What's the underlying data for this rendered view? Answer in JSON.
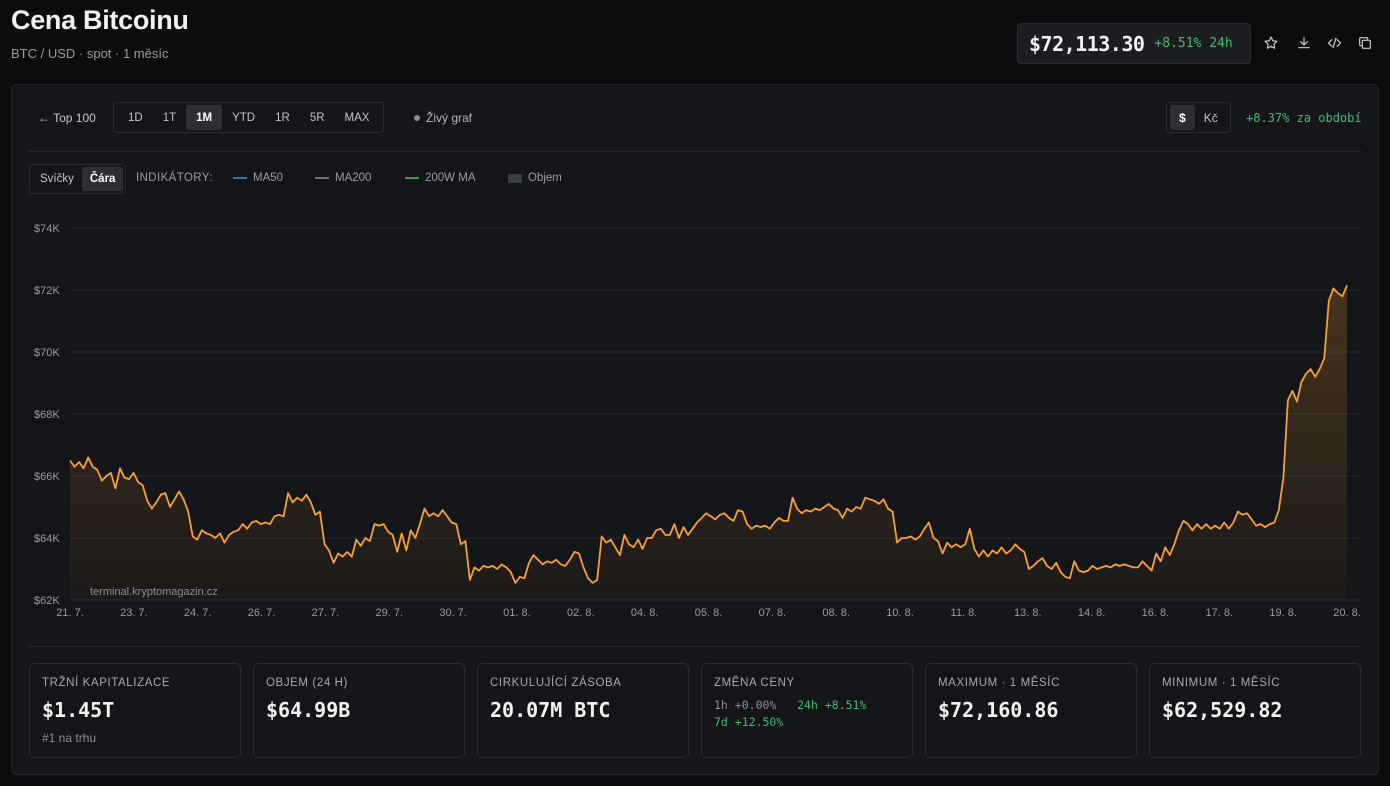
{
  "header": {
    "title": "Cena Bitcoinu",
    "subtitle": "BTC / USD · spot · 1 měsíc",
    "price": "$72,113.30",
    "change_24h": "+8.51% 24h"
  },
  "toolbar": {
    "back_label": "← Top 100",
    "ranges": [
      "1D",
      "1T",
      "1M",
      "YTD",
      "1R",
      "5R",
      "MAX"
    ],
    "active_range": "1M",
    "live_label": "Živý graf",
    "currency_usd": "$",
    "currency_czk": "Kč",
    "period_change": "+8.37% za období"
  },
  "chart_controls": {
    "type_candles": "Svíčky",
    "type_line": "Čára",
    "indicators_label": "INDIKÁTORY:",
    "indicators": [
      {
        "name": "MA50",
        "color": "#3e6fa8"
      },
      {
        "name": "MA200",
        "color": "#6f7276"
      },
      {
        "name": "200W MA",
        "color": "#3a9a5a"
      },
      {
        "name": "Objem",
        "color": "#3a3f3d"
      }
    ]
  },
  "watermark": "terminal.kryptomagazin.cz",
  "colors": {
    "line": "#f7a033",
    "positive": "#3fbf6f",
    "background": "#0b0c0e"
  },
  "chart_data": {
    "type": "line",
    "title": "",
    "xlabel": "",
    "ylabel": "",
    "ylim": [
      62000,
      74000
    ],
    "yticks": [
      62000,
      64000,
      66000,
      68000,
      70000,
      72000,
      74000
    ],
    "ytick_labels": [
      "$62K",
      "$64K",
      "$66K",
      "$68K",
      "$70K",
      "$72K",
      "$74K"
    ],
    "xtick_labels": [
      "21. 7.",
      "23. 7.",
      "24. 7.",
      "26. 7.",
      "27. 7.",
      "29. 7.",
      "30. 7.",
      "01. 8.",
      "02. 8.",
      "04. 8.",
      "05. 8.",
      "07. 8.",
      "08. 8.",
      "10. 8.",
      "11. 8.",
      "13. 8.",
      "14. 8.",
      "16. 8.",
      "17. 8.",
      "19. 8.",
      "20. 8."
    ],
    "grid": true,
    "legend": "none",
    "series": [
      {
        "values": [
          66500,
          66300,
          66450,
          66250,
          66600,
          66300,
          66200,
          65850,
          66000,
          66100,
          65600,
          66250,
          65950,
          65900,
          66100,
          65800,
          65700,
          65200,
          64950,
          65150,
          65400,
          65450,
          65000,
          65250,
          65500,
          65250,
          64850,
          64050,
          63950,
          64250,
          64150,
          64100,
          64000,
          64150,
          63850,
          64100,
          64200,
          64250,
          64450,
          64300,
          64500,
          64550,
          64450,
          64500,
          64450,
          64700,
          64750,
          64700,
          65450,
          65150,
          65300,
          65200,
          65400,
          65150,
          64750,
          64850,
          63800,
          63600,
          63200,
          63500,
          63400,
          63550,
          63400,
          63950,
          63750,
          64000,
          63900,
          64450,
          64400,
          64450,
          64200,
          64100,
          63550,
          64150,
          63600,
          64250,
          64000,
          64450,
          64950,
          64700,
          64800,
          64700,
          64900,
          64700,
          64500,
          64450,
          63800,
          63900,
          62650,
          63050,
          62950,
          63100,
          63050,
          63100,
          63000,
          63150,
          63050,
          62900,
          62550,
          62750,
          62700,
          63200,
          63450,
          63300,
          63150,
          63250,
          63200,
          63300,
          63150,
          63100,
          63300,
          63550,
          63500,
          63050,
          62700,
          62550,
          62650,
          64050,
          63850,
          63950,
          63700,
          63450,
          64100,
          63800,
          63700,
          63950,
          63650,
          64000,
          64000,
          64250,
          64300,
          64100,
          64100,
          64450,
          64000,
          64350,
          64100,
          64300,
          64500,
          64650,
          64800,
          64700,
          64600,
          64750,
          64800,
          64650,
          64550,
          64900,
          64850,
          64450,
          64300,
          64400,
          64350,
          64400,
          64300,
          64500,
          64650,
          64550,
          64550,
          65300,
          64950,
          64800,
          64900,
          64850,
          64950,
          64900,
          65000,
          65100,
          64950,
          64900,
          64650,
          64950,
          64850,
          65000,
          64950,
          65300,
          65250,
          65200,
          65100,
          65250,
          64950,
          64850,
          63850,
          64000,
          64000,
          64050,
          63950,
          64050,
          64300,
          64500,
          64000,
          63900,
          63500,
          63850,
          63700,
          63800,
          63700,
          63800,
          64300,
          63650,
          63400,
          63600,
          63400,
          63600,
          63500,
          63700,
          63500,
          63600,
          63800,
          63650,
          63550,
          63000,
          63100,
          63250,
          63350,
          63100,
          63000,
          63200,
          62900,
          62750,
          62700,
          63250,
          62950,
          62900,
          62950,
          63100,
          63000,
          63050,
          63100,
          63050,
          63150,
          63100,
          63150,
          63100,
          63050,
          63050,
          63250,
          63100,
          62950,
          63500,
          63250,
          63700,
          63450,
          63800,
          64250,
          64550,
          64450,
          64250,
          64450,
          64300,
          64450,
          64300,
          64400,
          64300,
          64500,
          64300,
          64500,
          64850,
          64750,
          64800,
          64600,
          64400,
          64450,
          64350,
          64450,
          64500,
          64900,
          65950,
          68450,
          68750,
          68400,
          69050,
          69300,
          69450,
          69200,
          69450,
          69800,
          71650,
          72050,
          71900,
          71800,
          72150
        ]
      }
    ]
  },
  "stats": [
    {
      "label": "TRŽNÍ KAPITALIZACE",
      "value": "$1.45T",
      "note": "#1 na trhu"
    },
    {
      "label": "OBJEM (24 H)",
      "value": "$64.99B"
    },
    {
      "label": "CIRKULUJÍCÍ ZÁSOBA",
      "value": "20.07M BTC"
    },
    {
      "label": "ZMĚNA CENY",
      "chg_1h_label": "1h",
      "chg_1h": "+0.00%",
      "chg_24h_label": "24h",
      "chg_24h": "+8.51%",
      "chg_7d_label": "7d",
      "chg_7d": "+12.50%"
    },
    {
      "label": "MAXIMUM · 1 MĚSÍC",
      "value": "$72,160.86"
    },
    {
      "label": "MINIMUM · 1 MĚSÍC",
      "value": "$62,529.82"
    }
  ]
}
